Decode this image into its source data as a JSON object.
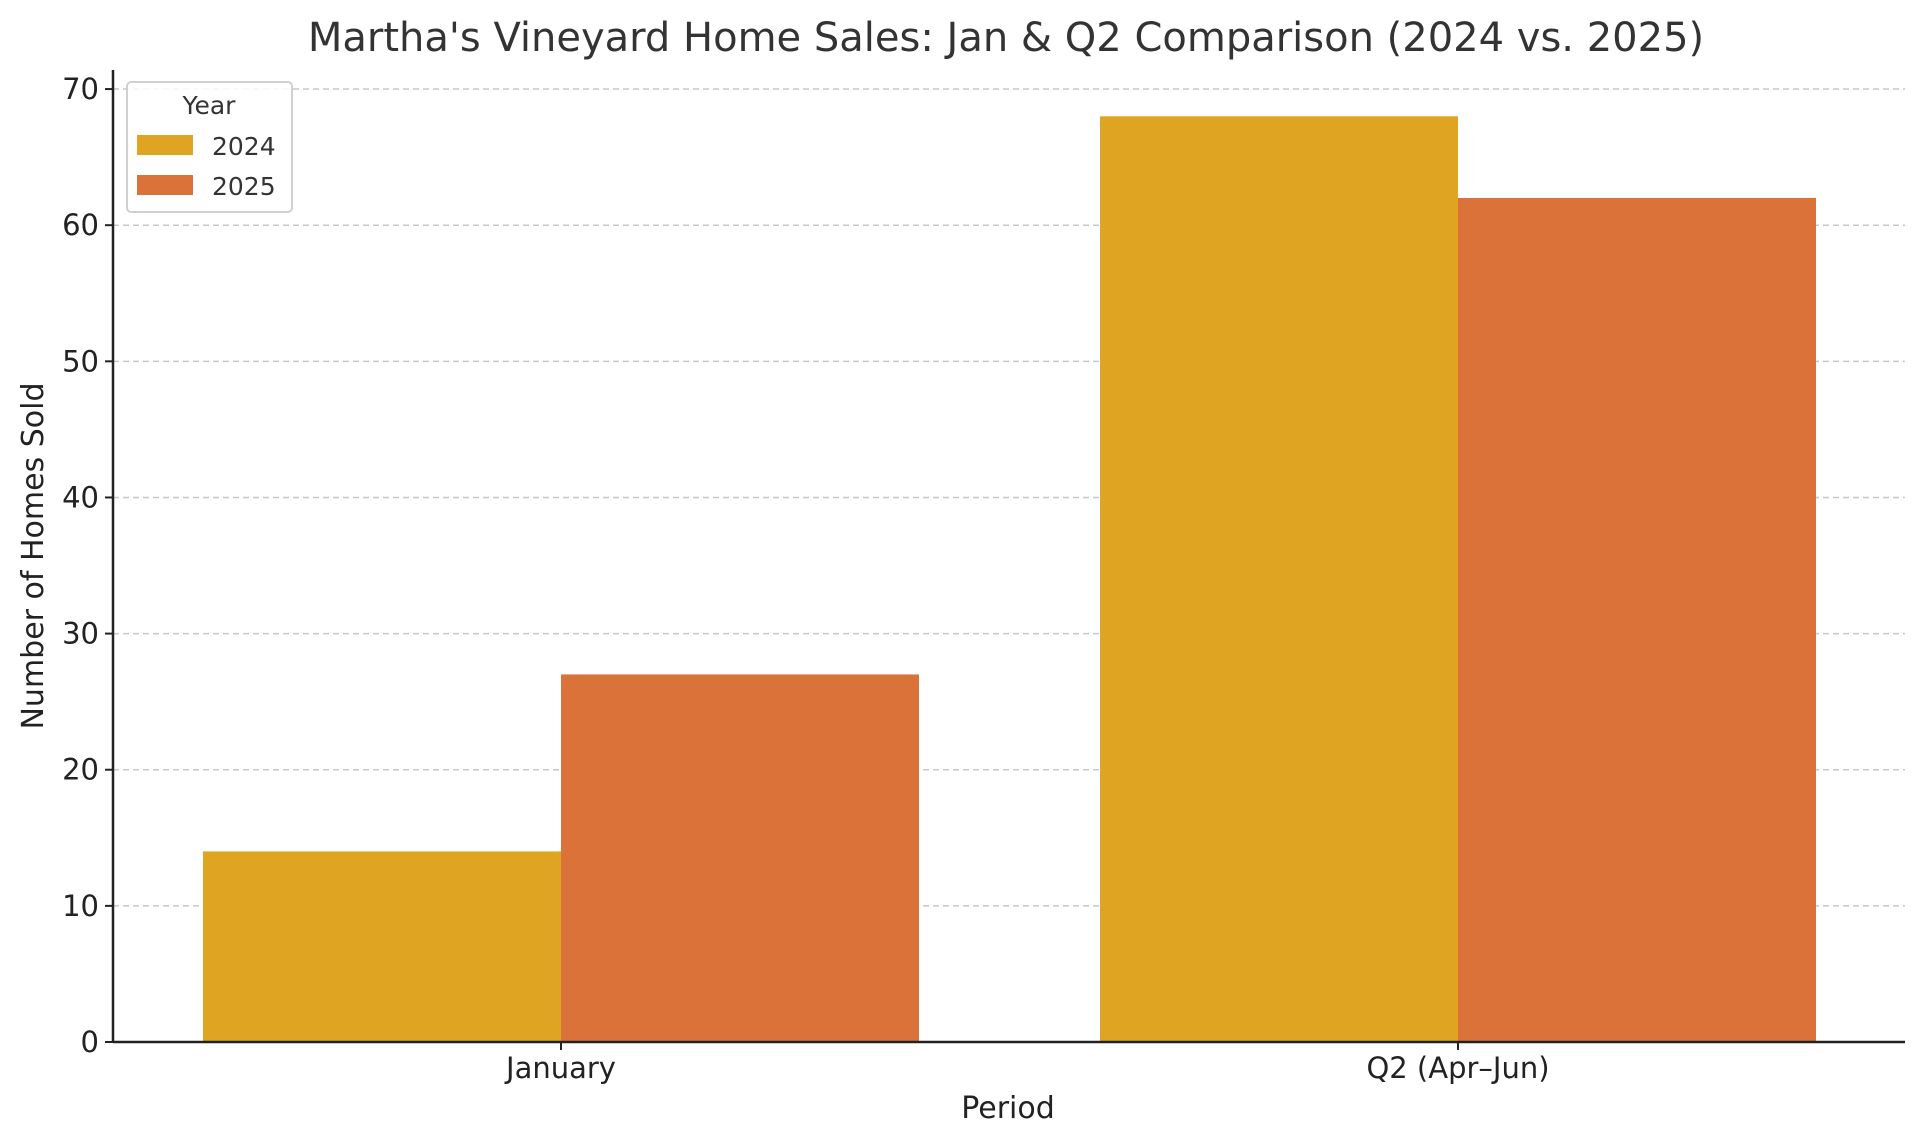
{
  "chart_data": {
    "type": "bar",
    "title": "Martha's Vineyard Home Sales: Jan & Q2 Comparison (2024 vs. 2025)",
    "xlabel": "Period",
    "ylabel": "Number of Homes Sold",
    "categories": [
      "January",
      "Q2 (Apr–Jun)"
    ],
    "series": [
      {
        "name": "2024",
        "values": [
          14,
          68
        ],
        "color": "#dfa421"
      },
      {
        "name": "2025",
        "values": [
          27,
          62
        ],
        "color": "#da723a"
      }
    ],
    "ylim": [
      0,
      71.4
    ],
    "yticks": [
      0,
      10,
      20,
      30,
      40,
      50,
      60,
      70
    ],
    "grid": "y-dashed",
    "legend": {
      "title": "Year",
      "placement": "top-left"
    }
  }
}
